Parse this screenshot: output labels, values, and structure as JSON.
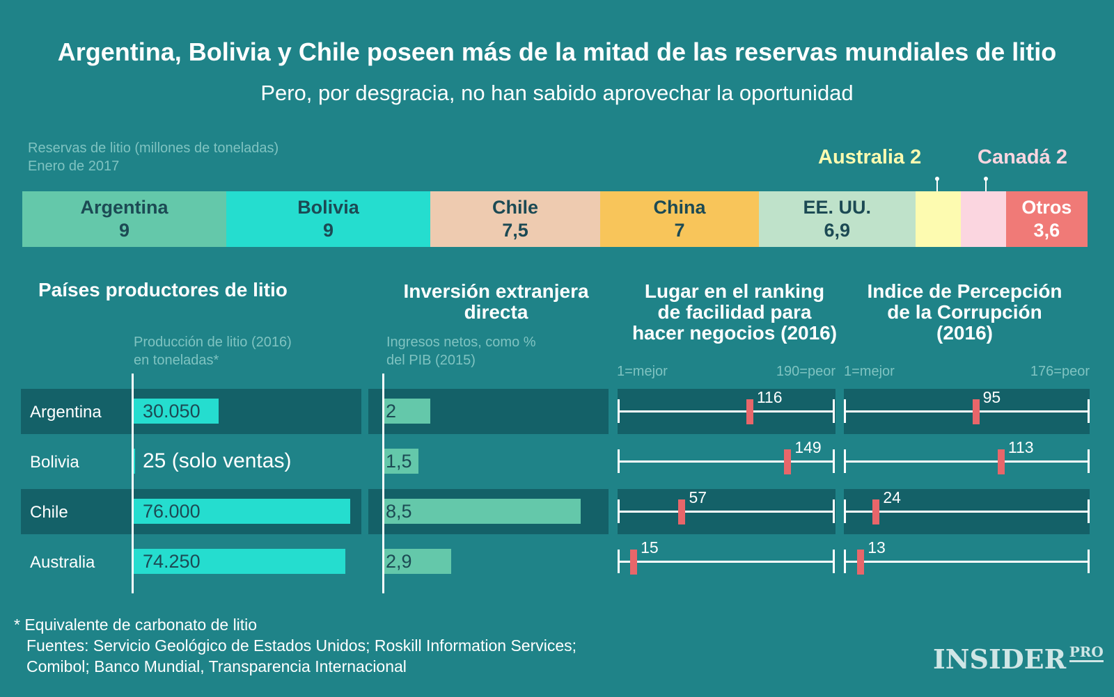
{
  "title": "Argentina, Bolivia y Chile poseen más de la mitad de las reservas mundiales de litio",
  "subtitle": "Pero, por desgracia, no han sabido aprovechar la oportunidad",
  "reserves": {
    "label_line1": "Reservas de litio (millones de toneladas)",
    "label_line2": "Enero de 2017",
    "callout_australia": "Australia 2",
    "callout_canada": "Canadá 2"
  },
  "sections": {
    "producers": "Países productores de litio",
    "production_sub_line1": "Producción de litio (2016)",
    "production_sub_line2": "en toneladas*",
    "fdi_line1": "Inversión extranjera",
    "fdi_line2": "directa",
    "fdi_sub_line1": "Ingresos netos, como %",
    "fdi_sub_line2": "del PIB (2015)",
    "business_line1": "Lugar en el ranking",
    "business_line2": "de facilidad para",
    "business_line3": "hacer negocios (2016)",
    "business_best": "1=mejor",
    "business_worst": "190=peor",
    "cpi_line1": "Indice de Percepción",
    "cpi_line2": "de la Corrupción",
    "cpi_line3": "(2016)",
    "cpi_best": "1=mejor",
    "cpi_worst": "176=peor"
  },
  "footer": {
    "note": "* Equivalente de carbonato de litio",
    "sources_line1": "Fuentes: Servicio Geológico de Estados Unidos; Roskill Information Services;",
    "sources_line2": "Comibol; Banco Mundial, Transparencia Internacional",
    "logo_main": "INSIDER",
    "logo_sub": "PRO"
  },
  "colors": {
    "background": "#1f8388",
    "band": "#146168",
    "production_bar": "#25ddcf",
    "fdi_bar": "#64c8aa",
    "rank_marker": "#e8666a"
  },
  "chart_data": [
    {
      "type": "bar",
      "title": "Reservas de litio (millones de toneladas)",
      "subtitle": "Enero de 2017",
      "stacked": true,
      "categories": [
        "Argentina",
        "Bolivia",
        "Chile",
        "China",
        "EE. UU.",
        "Australia",
        "Canadá",
        "Otros"
      ],
      "values": [
        9,
        9,
        7.5,
        7,
        6.9,
        2,
        2,
        3.6
      ],
      "value_labels": [
        "9",
        "9",
        "7,5",
        "7",
        "6,9",
        "2",
        "2",
        "3,6"
      ],
      "colors": [
        "#64c8aa",
        "#25ddcf",
        "#eecbb0",
        "#f8c55a",
        "#bfe2ca",
        "#fdfbb0",
        "#fbd6e0",
        "#f07a77"
      ],
      "text_colors": [
        "#1c4a54",
        "#1c4a54",
        "#1c4a54",
        "#1c4a54",
        "#1c4a54",
        "#fdfbb0",
        "#fbd6e0",
        "#ffffff"
      ]
    },
    {
      "type": "bar",
      "title": "Producción de litio (2016) en toneladas*",
      "categories": [
        "Argentina",
        "Bolivia",
        "Chile",
        "Australia"
      ],
      "values": [
        30050,
        25,
        76000,
        74250
      ],
      "value_labels": [
        "30.050",
        "25 (solo ventas)",
        "76.000",
        "74.250"
      ],
      "xlim": [
        0,
        76000
      ]
    },
    {
      "type": "bar",
      "title": "Inversión extranjera directa",
      "subtitle": "Ingresos netos, como % del PIB (2015)",
      "categories": [
        "Argentina",
        "Bolivia",
        "Chile",
        "Australia"
      ],
      "values": [
        2,
        1.5,
        8.5,
        2.9
      ],
      "value_labels": [
        "2",
        "1,5",
        "8,5",
        "2,9"
      ],
      "xlim": [
        0,
        8.5
      ]
    },
    {
      "type": "scatter",
      "title": "Lugar en el ranking de facilidad para hacer negocios (2016)",
      "categories": [
        "Argentina",
        "Bolivia",
        "Chile",
        "Australia"
      ],
      "values": [
        116,
        149,
        57,
        15
      ],
      "xlim": [
        1,
        190
      ]
    },
    {
      "type": "scatter",
      "title": "Indice de Percepción de la Corrupción (2016)",
      "categories": [
        "Argentina",
        "Bolivia",
        "Chile",
        "Australia"
      ],
      "values": [
        95,
        113,
        24,
        13
      ],
      "xlim": [
        1,
        176
      ]
    }
  ]
}
